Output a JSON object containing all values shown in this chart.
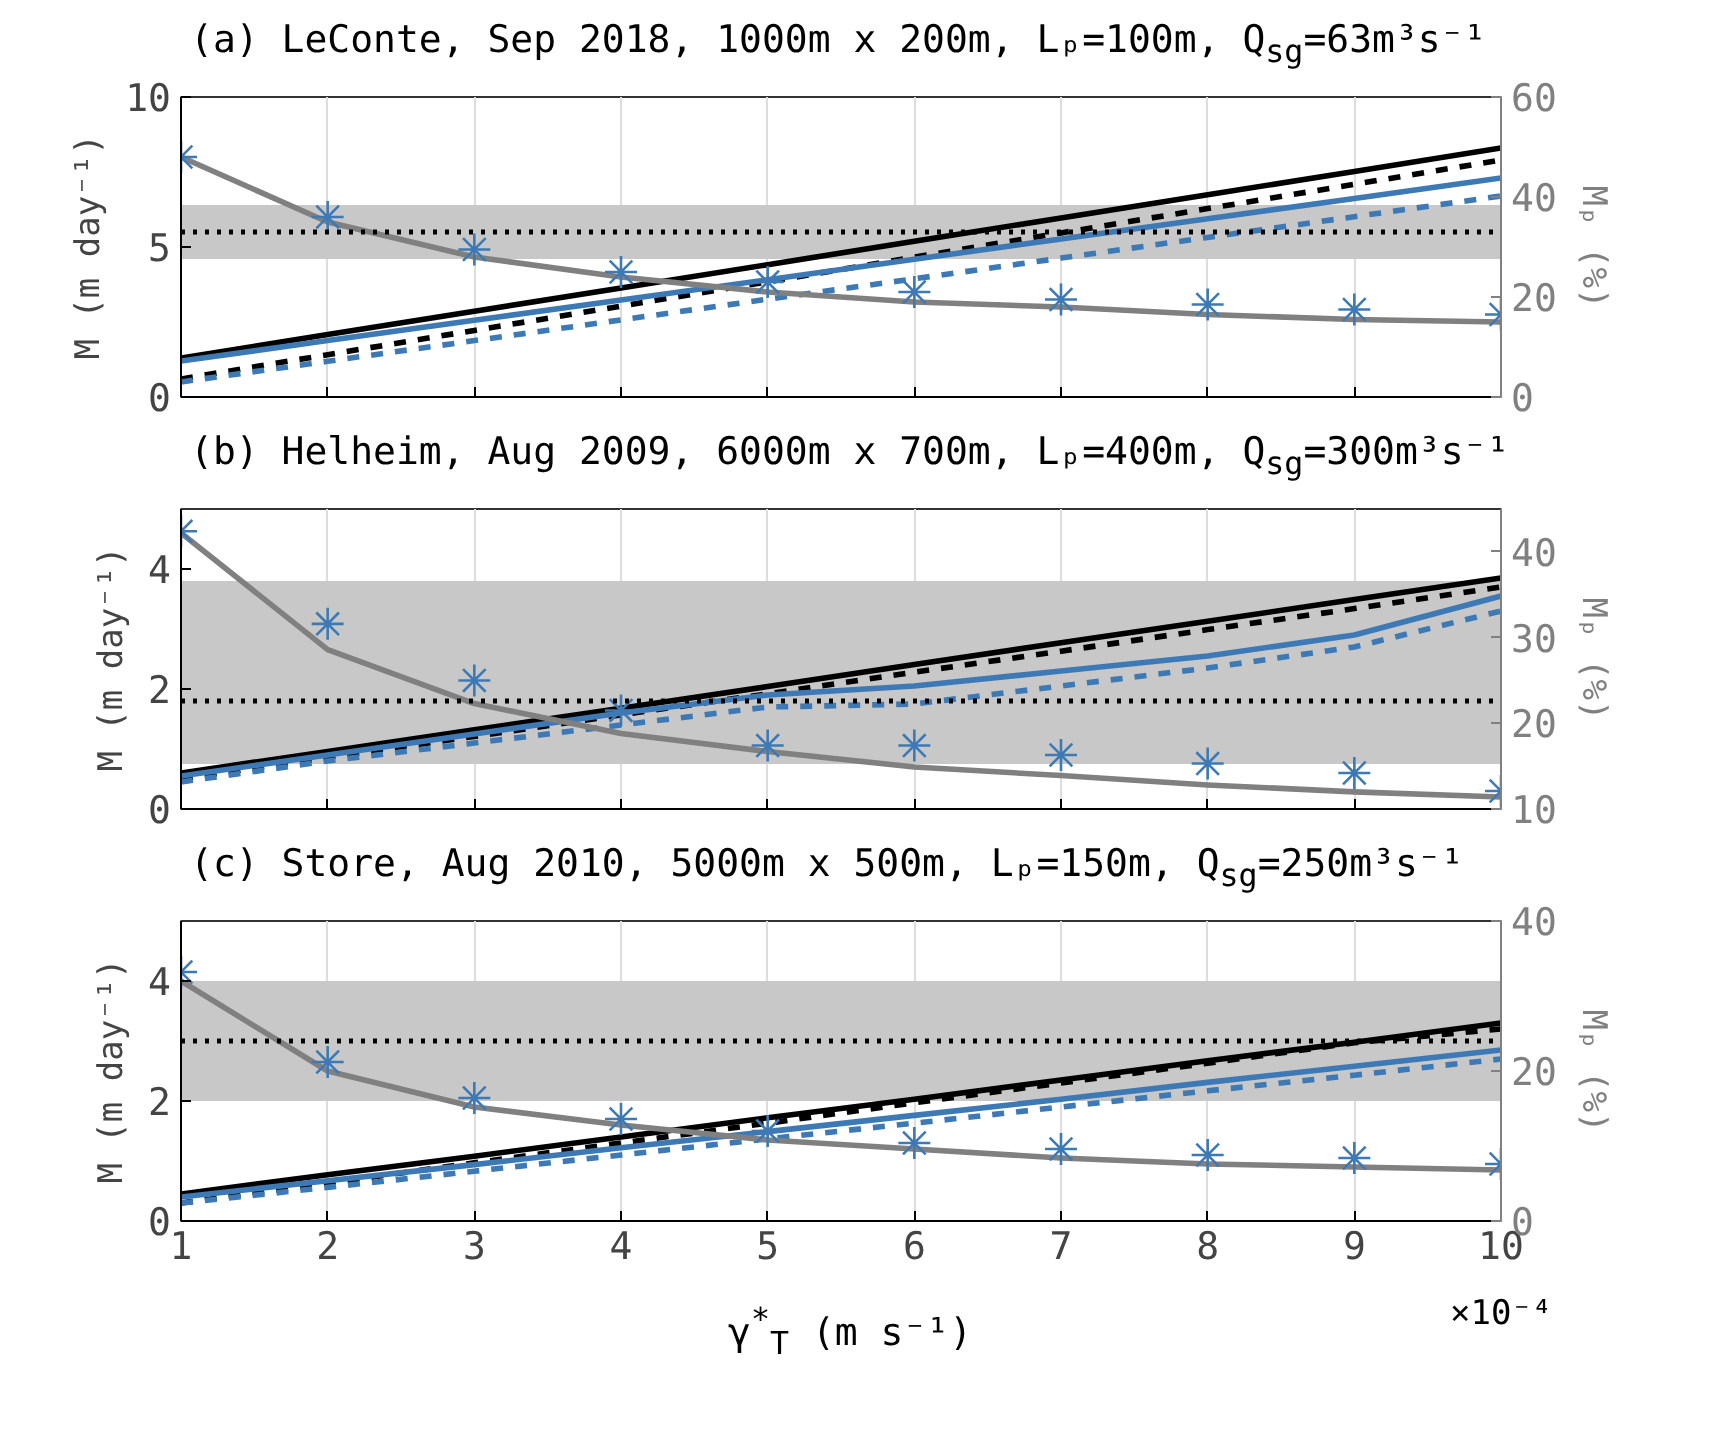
{
  "chart_data": [
    {
      "type": "line",
      "title": "(a) LeConte, Sep 2018, 1000m x 200m, Lₚ=100m, Q$_{sg}$=63m³s⁻¹",
      "ylabel": "M (m day⁻¹)",
      "y2label": "Mₚ (%)",
      "x": [
        1,
        2,
        3,
        4,
        5,
        6,
        7,
        8,
        9,
        10
      ],
      "xlim": [
        1,
        10
      ],
      "xticks": [
        1,
        2,
        3,
        4,
        5,
        6,
        7,
        8,
        9,
        10
      ],
      "ylim": [
        0,
        10
      ],
      "yticks": [
        0,
        5,
        10
      ],
      "y2lim": [
        0,
        60
      ],
      "y2ticks": [
        0,
        20,
        40,
        60
      ],
      "grid": "x",
      "tick_labels": "y",
      "ref_lines": [
        {
          "axis": "y",
          "value": 5.5,
          "color": "#000000",
          "line_style": "dotted"
        }
      ],
      "bands": [
        {
          "axis": "y",
          "from": 4.6,
          "to": 6.4,
          "color": "#c8c8c8"
        }
      ],
      "series": [
        {
          "color": "#000000",
          "line_style": "solid",
          "values": [
            1.3,
            2.08,
            2.86,
            3.63,
            4.41,
            5.19,
            5.97,
            6.74,
            7.52,
            8.3
          ]
        },
        {
          "color": "#000000",
          "line_style": "dashed",
          "values": [
            0.6,
            1.41,
            2.22,
            3.03,
            3.84,
            4.66,
            5.47,
            6.28,
            7.09,
            7.9
          ]
        },
        {
          "color": "#3d7ab5",
          "line_style": "solid",
          "values": [
            1.2,
            1.88,
            2.56,
            3.23,
            3.91,
            4.59,
            5.27,
            5.94,
            6.62,
            7.3
          ]
        },
        {
          "color": "#3d7ab5",
          "line_style": "dashed",
          "values": [
            0.5,
            1.19,
            1.88,
            2.57,
            3.26,
            3.94,
            4.63,
            5.32,
            6.01,
            6.7
          ]
        },
        {
          "color": "#808080",
          "line_style": "solid",
          "axis": "y2",
          "values": [
            48,
            35,
            28,
            24,
            21,
            19,
            18,
            16.5,
            15.5,
            15
          ]
        },
        {
          "type": "scatter",
          "color": "#3d7ab5",
          "marker": "cross",
          "axis": "y2",
          "values": [
            48,
            36,
            29.5,
            25,
            23,
            21,
            19.5,
            18.5,
            17.5,
            16.5
          ]
        }
      ]
    },
    {
      "type": "line",
      "title": "(b) Helheim, Aug 2009, 6000m x 700m, Lₚ=400m, Q$_{sg}$=300m³s⁻¹",
      "ylabel": "M (m day⁻¹)",
      "y2label": "Mₚ (%)",
      "x": [
        1,
        2,
        3,
        4,
        5,
        6,
        7,
        8,
        9,
        10
      ],
      "xlim": [
        1,
        10
      ],
      "xticks": [
        1,
        2,
        3,
        4,
        5,
        6,
        7,
        8,
        9,
        10
      ],
      "ylim": [
        0,
        5
      ],
      "yticks": [
        0,
        2,
        4
      ],
      "y2lim": [
        10,
        45
      ],
      "y2ticks": [
        10,
        20,
        30,
        40
      ],
      "grid": "x",
      "tick_labels": "y",
      "ref_lines": [
        {
          "axis": "y",
          "value": 1.8,
          "color": "#000000",
          "line_style": "dotted"
        }
      ],
      "bands": [
        {
          "axis": "y",
          "from": 0.75,
          "to": 3.8,
          "color": "#c8c8c8"
        }
      ],
      "series": [
        {
          "color": "#000000",
          "line_style": "solid",
          "values": [
            0.6,
            0.96,
            1.32,
            1.68,
            2.04,
            2.41,
            2.77,
            3.13,
            3.49,
            3.85
          ]
        },
        {
          "color": "#000000",
          "line_style": "dashed",
          "values": [
            0.5,
            0.86,
            1.21,
            1.57,
            1.92,
            2.28,
            2.63,
            2.99,
            3.34,
            3.7
          ]
        },
        {
          "color": "#3d7ab5",
          "line_style": "solid",
          "values": [
            0.55,
            0.9,
            1.25,
            1.6,
            1.9,
            2.05,
            2.3,
            2.55,
            2.9,
            3.55
          ]
        },
        {
          "color": "#3d7ab5",
          "line_style": "dashed",
          "values": [
            0.45,
            0.8,
            1.1,
            1.4,
            1.7,
            1.75,
            2.05,
            2.35,
            2.7,
            3.3
          ]
        },
        {
          "color": "#808080",
          "line_style": "solid",
          "axis": "y2",
          "values": [
            42.2,
            28.6,
            22.3,
            18.8,
            16.7,
            14.9,
            13.9,
            12.8,
            12,
            11.4
          ]
        },
        {
          "type": "scatter",
          "color": "#3d7ab5",
          "marker": "cross",
          "axis": "y2",
          "values": [
            42.4,
            31.6,
            25,
            21.5,
            17.4,
            17.4,
            16.3,
            15.3,
            14.2,
            12.1
          ]
        }
      ]
    },
    {
      "type": "line",
      "title": "(c) Store, Aug 2010, 5000m x 500m, Lₚ=150m, Q$_{sg}$=250m³s⁻¹",
      "xlabel": "γ$^{*}$$_{T}$ (m s⁻¹)",
      "ylabel": "M (m day⁻¹)",
      "y2label": "Mₚ (%)",
      "annotations": [
        "×10⁻⁴"
      ],
      "x": [
        1,
        2,
        3,
        4,
        5,
        6,
        7,
        8,
        9,
        10
      ],
      "xlim": [
        1,
        10
      ],
      "xticks": [
        1,
        2,
        3,
        4,
        5,
        6,
        7,
        8,
        9,
        10
      ],
      "ylim": [
        0,
        5
      ],
      "yticks": [
        0,
        2,
        4
      ],
      "y2lim": [
        0,
        40
      ],
      "y2ticks": [
        0,
        20,
        40
      ],
      "grid": "x",
      "ref_lines": [
        {
          "axis": "y",
          "value": 3.0,
          "color": "#000000",
          "line_style": "dotted"
        }
      ],
      "bands": [
        {
          "axis": "y",
          "from": 2.0,
          "to": 4.0,
          "color": "#c8c8c8"
        }
      ],
      "series": [
        {
          "color": "#000000",
          "line_style": "solid",
          "values": [
            0.45,
            0.77,
            1.08,
            1.4,
            1.72,
            2.03,
            2.35,
            2.67,
            2.98,
            3.3
          ]
        },
        {
          "color": "#000000",
          "line_style": "dashed",
          "values": [
            0.3,
            0.63,
            0.97,
            1.3,
            1.63,
            1.97,
            2.3,
            2.63,
            2.97,
            3.2
          ]
        },
        {
          "color": "#3d7ab5",
          "line_style": "solid",
          "values": [
            0.4,
            0.67,
            0.94,
            1.22,
            1.49,
            1.76,
            2.03,
            2.31,
            2.58,
            2.85
          ]
        },
        {
          "color": "#3d7ab5",
          "line_style": "dashed",
          "values": [
            0.3,
            0.56,
            0.83,
            1.1,
            1.37,
            1.63,
            1.9,
            2.17,
            2.43,
            2.7
          ]
        },
        {
          "color": "#808080",
          "line_style": "solid",
          "axis": "y2",
          "values": [
            32,
            20,
            15.2,
            12.8,
            10.8,
            9.6,
            8.4,
            7.6,
            7.2,
            6.8
          ]
        },
        {
          "type": "scatter",
          "color": "#3d7ab5",
          "marker": "cross",
          "axis": "y2",
          "values": [
            33.2,
            21.2,
            16.4,
            13.6,
            12,
            10.4,
            9.6,
            8.8,
            8.4,
            7.6
          ]
        }
      ]
    }
  ]
}
